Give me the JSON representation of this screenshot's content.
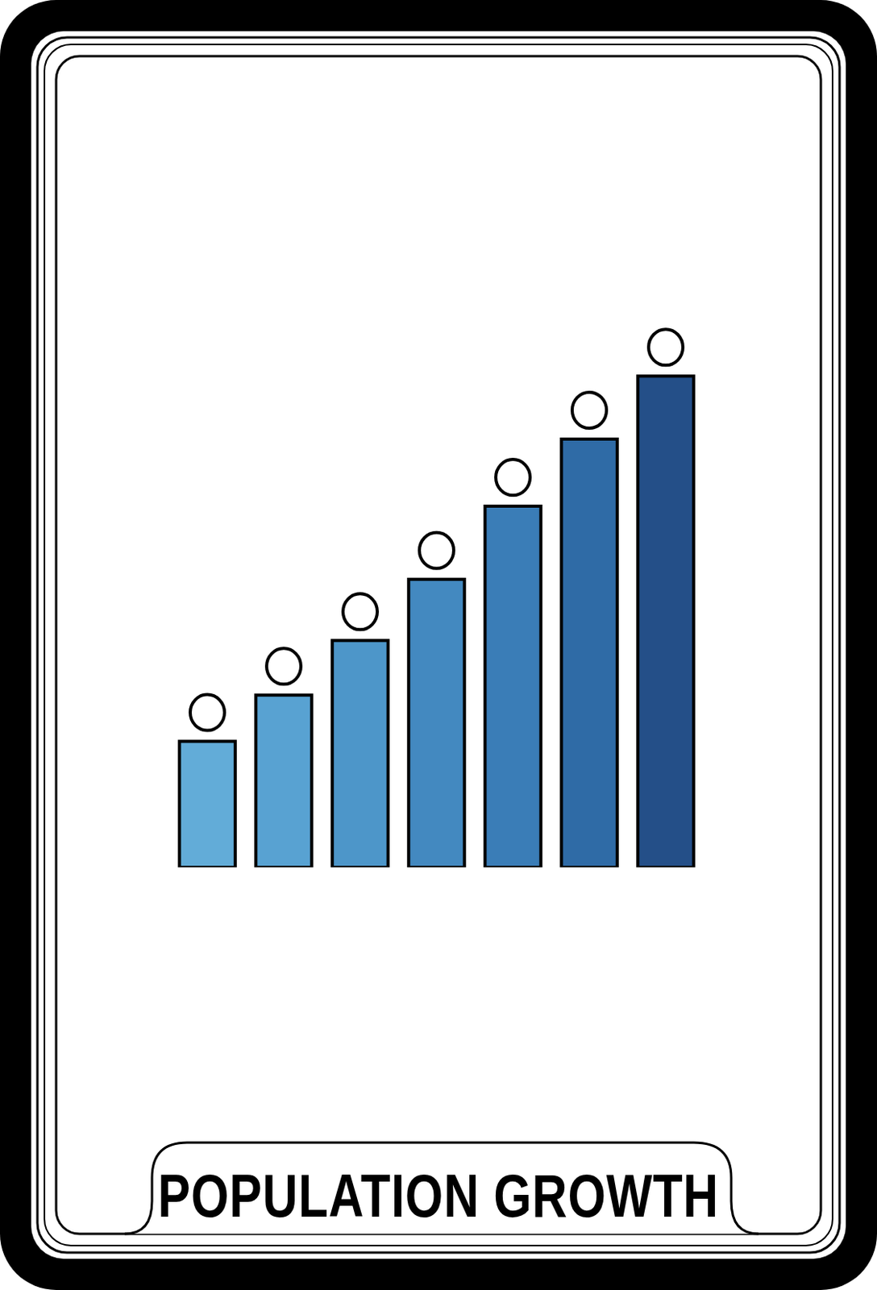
{
  "chart_data": {
    "type": "bar",
    "title": "POPULATION GROWTH",
    "categories": [
      null,
      null,
      null,
      null,
      null,
      null,
      null
    ],
    "values": [
      150,
      205,
      270,
      343,
      430,
      510,
      585
    ],
    "colors": [
      "#62acd8",
      "#58a2d2",
      "#4d96c9",
      "#4389c0",
      "#3a7db7",
      "#2f6ba6",
      "#244f88"
    ],
    "ylim": [
      0,
      680
    ],
    "yticks": [
      0,
      680
    ],
    "grid": false,
    "tick_labels": false,
    "marker": "head"
  }
}
